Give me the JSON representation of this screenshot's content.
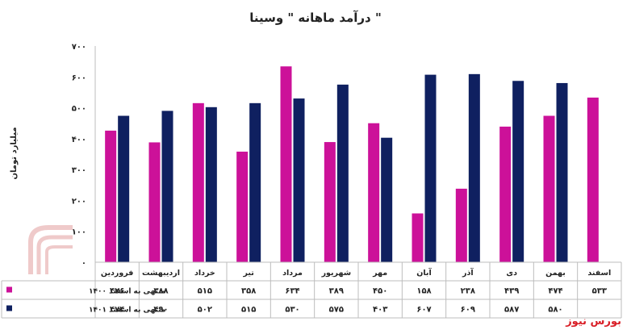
{
  "chart_data": {
    "type": "bar",
    "title": "درآمد ماهانه \" وسینا \"",
    "ylabel": "میلیارد تومان",
    "ylim": [
      0,
      700
    ],
    "yticks": [
      "۰",
      "۱۰۰",
      "۲۰۰",
      "۳۰۰",
      "۴۰۰",
      "۵۰۰",
      "۶۰۰",
      "۷۰۰"
    ],
    "grid": false,
    "legend": "bottom-left-table",
    "categories": [
      "فروردین",
      "اردیبهشت",
      "خرداد",
      "تیر",
      "مرداد",
      "شهریور",
      "مهر",
      "آبان",
      "آذر",
      "دی",
      "بهمن",
      "اسفند"
    ],
    "series": [
      {
        "name": "منتهی به اسفند ۱۴۰۰",
        "color": "#cc1199",
        "values": [
          426,
          388,
          515,
          358,
          634,
          389,
          450,
          158,
          238,
          439,
          474,
          533
        ],
        "labels": [
          "۴۲۶",
          "۳۸۸",
          "۵۱۵",
          "۳۵۸",
          "۶۳۴",
          "۳۸۹",
          "۴۵۰",
          "۱۵۸",
          "۲۳۸",
          "۴۳۹",
          "۴۷۴",
          "۵۳۳"
        ]
      },
      {
        "name": "منتهی به اسفند ۱۴۰۱",
        "color": "#0f2060",
        "values": [
          474,
          490,
          502,
          515,
          530,
          575,
          403,
          607,
          609,
          587,
          580,
          null
        ],
        "labels": [
          "۴۷۴",
          "۴۹۰",
          "۵۰۲",
          "۵۱۵",
          "۵۳۰",
          "۵۷۵",
          "۴۰۳",
          "۶۰۷",
          "۶۰۹",
          "۵۸۷",
          "۵۸۰",
          ""
        ]
      }
    ]
  },
  "brand": "بورس نیوز"
}
